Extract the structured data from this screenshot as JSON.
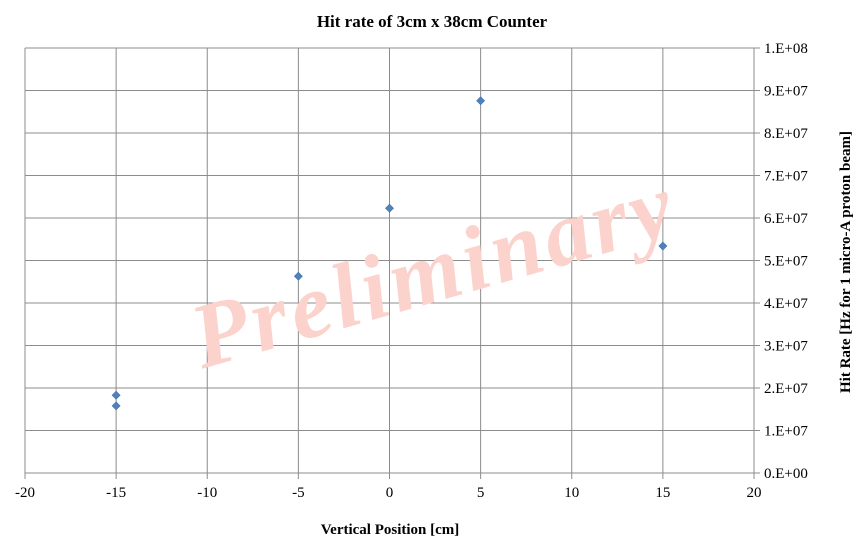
{
  "chart_data": {
    "type": "scatter",
    "title": "Hit rate of 3cm x 38cm Counter",
    "xlabel": "Vertical Position [cm]",
    "ylabel": "Hit Rate [Hz for 1 micro-A proton beam]",
    "xlim": [
      -20,
      20
    ],
    "ylim": [
      0,
      100000000
    ],
    "x_ticks": [
      -20,
      -15,
      -10,
      -5,
      0,
      5,
      10,
      15,
      20
    ],
    "x_tick_labels": [
      "-20",
      "-15",
      "-10",
      "-5",
      "0",
      "5",
      "10",
      "15",
      "20"
    ],
    "y_ticks": [
      0,
      10000000,
      20000000,
      30000000,
      40000000,
      50000000,
      60000000,
      70000000,
      80000000,
      90000000,
      100000000
    ],
    "y_tick_labels": [
      "0.E+00",
      "1.E+07",
      "2.E+07",
      "3.E+07",
      "4.E+07",
      "5.E+07",
      "6.E+07",
      "7.E+07",
      "8.E+07",
      "9.E+07",
      "1.E+08"
    ],
    "y_axis_side": "right",
    "grid": true,
    "legend": false,
    "marker": "diamond",
    "marker_color": "#4f81bd",
    "watermark": "Preliminary",
    "watermark_color": "#fbd3cc",
    "series": [
      {
        "points": [
          {
            "x": -15,
            "y": 18300000
          },
          {
            "x": -15,
            "y": 15800000
          },
          {
            "x": -5,
            "y": 46300000
          },
          {
            "x": 0,
            "y": 62300000
          },
          {
            "x": 5,
            "y": 87600000
          },
          {
            "x": 15,
            "y": 53400000
          }
        ]
      }
    ]
  }
}
